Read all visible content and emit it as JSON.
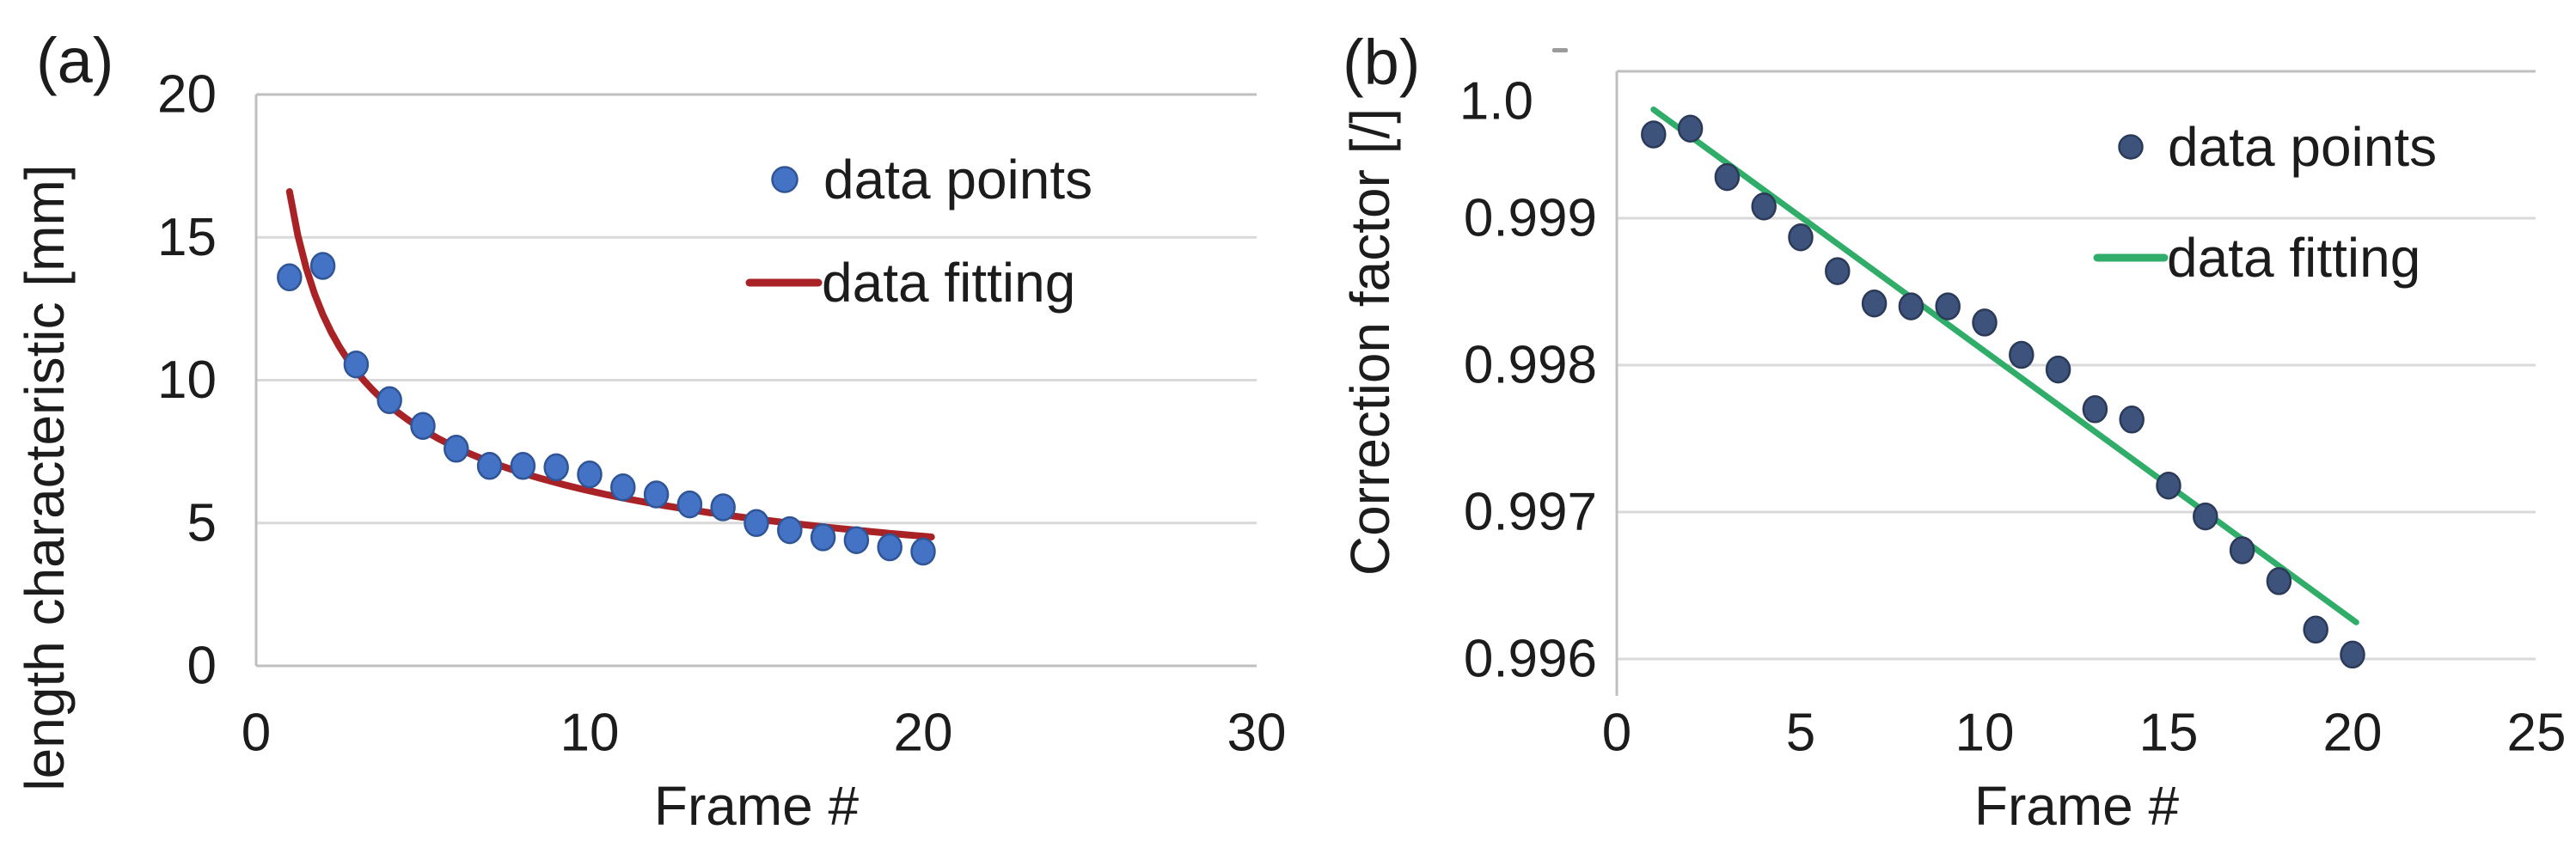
{
  "figure": {
    "description": "Two-panel scientific figure with scatter data and fitted curves",
    "background": "#FFFFFF"
  },
  "colors": {
    "text": "#1c1c1c",
    "gridline": "#D9D9D9",
    "axis_line": "#BFBFBF",
    "panel_a_marker": "#4472C4",
    "panel_a_marker_edge": "#2F5597",
    "panel_a_fit": "#A92226",
    "panel_b_marker": "#3D537C",
    "panel_b_marker_edge": "#2B3A58",
    "panel_b_fit": "#30AD68",
    "stray_mark": "#9B9B9B"
  },
  "chart_data": [
    {
      "type": "scatter",
      "panel_tag": "(a)",
      "title": "",
      "xlabel": "Frame #",
      "ylabel": "length characteristic [mm]",
      "xlim": [
        0,
        30.5
      ],
      "ylim": [
        0,
        20
      ],
      "x_ticks": [
        0,
        10,
        20,
        30
      ],
      "x_tick_labels": [
        "0",
        "10",
        "20",
        "30"
      ],
      "y_ticks": [
        20,
        15,
        10,
        5,
        0
      ],
      "y_tick_labels": [
        "20",
        "15",
        "10",
        "5",
        "0"
      ],
      "grid": "horizontal",
      "legend_position": "upper-right-inside",
      "series": [
        {
          "name": "data points",
          "kind": "scatter",
          "x": [
            1,
            2,
            3,
            4,
            5,
            6,
            7,
            8,
            9,
            10,
            11,
            12,
            13,
            14,
            15,
            16,
            17,
            18,
            19,
            20
          ],
          "y": [
            13.6,
            14.0,
            10.55,
            9.3,
            8.4,
            7.6,
            7.0,
            7.0,
            6.95,
            6.7,
            6.25,
            6.0,
            5.65,
            5.55,
            5.0,
            4.75,
            4.5,
            4.4,
            4.15,
            4.0
          ]
        },
        {
          "name": "data fitting",
          "kind": "line",
          "fit_model": "power",
          "fit_a": 16.6,
          "fit_b": -0.433,
          "x_range": [
            1,
            20.25
          ]
        }
      ]
    },
    {
      "type": "scatter",
      "panel_tag": "(b)",
      "title": "",
      "xlabel": "Frame #",
      "ylabel": "Correction factor [/]",
      "xlim": [
        0,
        25.2
      ],
      "ylim": [
        0.9958,
        1.0002
      ],
      "x_ticks": [
        0,
        5,
        10,
        15,
        20,
        25
      ],
      "x_tick_labels": [
        "0",
        "5",
        "10",
        "15",
        "20",
        "25"
      ],
      "y_ticks": [
        1.0,
        0.999,
        0.998,
        0.997,
        0.996
      ],
      "y_tick_labels": [
        "1.0",
        "0.999",
        "0.998",
        "0.997",
        "0.996"
      ],
      "grid": "horizontal",
      "legend_position": "upper-right-inside",
      "series": [
        {
          "name": "data points",
          "kind": "scatter",
          "x": [
            1,
            2,
            3,
            4,
            5,
            6,
            7,
            8,
            9,
            10,
            11,
            12,
            13,
            14,
            15,
            16,
            17,
            18,
            19,
            20
          ],
          "y": [
            0.99957,
            0.99961,
            0.99928,
            0.99908,
            0.99887,
            0.99864,
            0.99842,
            0.9984,
            0.9984,
            0.99829,
            0.99807,
            0.99797,
            0.9977,
            0.99763,
            0.99718,
            0.99697,
            0.99674,
            0.99653,
            0.9962,
            0.99603
          ]
        },
        {
          "name": "data fitting",
          "kind": "line",
          "fit_model": "linear",
          "points": [
            [
              1.0,
              0.99974
            ],
            [
              20.1,
              0.99625
            ]
          ]
        }
      ]
    }
  ]
}
